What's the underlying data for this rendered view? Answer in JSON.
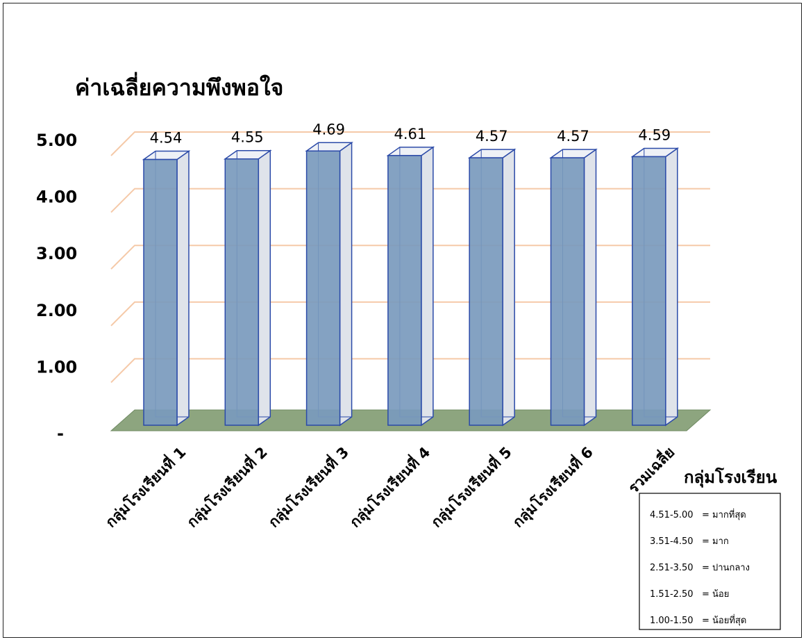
{
  "chart_data": {
    "type": "bar",
    "title": "ค่าเฉลี่ยความพึงพอใจ",
    "xlabel": "กลุ่มโรงเรียน",
    "ylabel": "",
    "categories": [
      "กลุ่มโรงเรียนที่ 1",
      "กลุ่มโรงเรียนที่ 2",
      "กลุ่มโรงเรียนที่ 3",
      "กลุ่มโรงเรียนที่ 4",
      "กลุ่มโรงเรียนที่ 5",
      "กลุ่มโรงเรียนที่ 6",
      "รวมเฉลี่ย"
    ],
    "values": [
      4.54,
      4.55,
      4.69,
      4.61,
      4.57,
      4.57,
      4.59
    ],
    "data_labels": [
      "4.54",
      "4.55",
      "4.69",
      "4.61",
      "4.57",
      "4.57",
      "4.59"
    ],
    "y_ticks": [
      {
        "value": 0,
        "label": "-"
      },
      {
        "value": 1,
        "label": "1.00"
      },
      {
        "value": 2,
        "label": "2.00"
      },
      {
        "value": 3,
        "label": "3.00"
      },
      {
        "value": 4,
        "label": "4.00"
      },
      {
        "value": 5,
        "label": "5.00"
      }
    ],
    "ylim": [
      0,
      5
    ],
    "grid": true,
    "style": "3d-column",
    "colors": {
      "bar_front": "#7a9abd",
      "bar_side": "#dfe3ea",
      "bar_edge": "#2b4aa8",
      "grid": "#f5c9a8",
      "floor": "#8da57f"
    }
  },
  "legend": {
    "items": [
      "4.51-5.00   = มากที่สุด",
      "3.51-4.50   = มาก",
      "2.51-3.50   = ปานกลาง",
      "1.51-2.50   = น้อย",
      "1.00-1.50   = น้อยที่สุด"
    ]
  }
}
